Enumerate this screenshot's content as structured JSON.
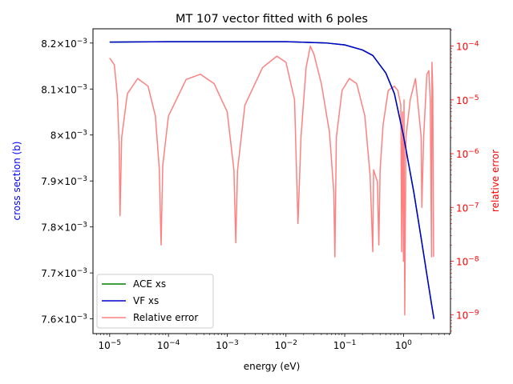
{
  "chart_data": {
    "type": "line",
    "title": "MT 107 vector fitted with 6 poles",
    "xlabel": "energy (eV)",
    "ylabel_left": "cross section (b)",
    "ylabel_right": "relative error",
    "xscale": "log",
    "xlim": [
      5.2e-06,
      6.3
    ],
    "ylim_left": [
      0.007568,
      0.008231
    ],
    "yscale_right": "log",
    "ylim_right": [
      4.5e-10,
      0.00021
    ],
    "x_ticks": [
      {
        "value": 1e-05,
        "label": "10",
        "exp": "−5"
      },
      {
        "value": 0.0001,
        "label": "10",
        "exp": "−4"
      },
      {
        "value": 0.001,
        "label": "10",
        "exp": "−3"
      },
      {
        "value": 0.01,
        "label": "10",
        "exp": "−2"
      },
      {
        "value": 0.1,
        "label": "10",
        "exp": "−1"
      },
      {
        "value": 1,
        "label": "10",
        "exp": "0"
      }
    ],
    "y_left_ticks": [
      {
        "value": 0.0076,
        "label": "7.6×10",
        "exp": "−3"
      },
      {
        "value": 0.0077,
        "label": "7.7×10",
        "exp": "−3"
      },
      {
        "value": 0.0078,
        "label": "7.8×10",
        "exp": "−3"
      },
      {
        "value": 0.0079,
        "label": "7.9×10",
        "exp": "−3"
      },
      {
        "value": 0.008,
        "label": "8×10",
        "exp": "−3"
      },
      {
        "value": 0.0081,
        "label": "8.1×10",
        "exp": "−3"
      },
      {
        "value": 0.0082,
        "label": "8.2×10",
        "exp": "−3"
      }
    ],
    "y_right_ticks": [
      {
        "value": 0.0001,
        "label": "10",
        "exp": "−4"
      },
      {
        "value": 1e-05,
        "label": "10",
        "exp": "−5"
      },
      {
        "value": 1e-06,
        "label": "10",
        "exp": "−6"
      },
      {
        "value": 1e-07,
        "label": "10",
        "exp": "−7"
      },
      {
        "value": 1e-08,
        "label": "10",
        "exp": "−8"
      },
      {
        "value": 1e-09,
        "label": "10",
        "exp": "−9"
      }
    ],
    "legend_position": "lower-left",
    "series": [
      {
        "name": "ACE xs",
        "color": "#008000",
        "axis": "left",
        "x": [
          1e-05,
          0.0001,
          0.001,
          0.01,
          0.05,
          0.1,
          0.2,
          0.3,
          0.5,
          0.7,
          1.0,
          1.5,
          2.0,
          2.5,
          3.0,
          3.3
        ],
        "y": [
          0.008202,
          0.008203,
          0.008203,
          0.008203,
          0.0082,
          0.008196,
          0.008185,
          0.008173,
          0.008135,
          0.00809,
          0.007998,
          0.007875,
          0.007775,
          0.007696,
          0.007632,
          0.0076
        ]
      },
      {
        "name": "VF xs",
        "color": "#0000cd",
        "axis": "left",
        "x": [
          1e-05,
          0.0001,
          0.001,
          0.01,
          0.05,
          0.1,
          0.2,
          0.3,
          0.5,
          0.7,
          1.0,
          1.5,
          2.0,
          2.5,
          3.0,
          3.3
        ],
        "y": [
          0.008202,
          0.008203,
          0.008203,
          0.008203,
          0.0082,
          0.008196,
          0.008185,
          0.008173,
          0.008135,
          0.00809,
          0.007998,
          0.007875,
          0.007775,
          0.007696,
          0.007632,
          0.0076
        ]
      },
      {
        "name": "Relative error",
        "color": "#ff8080",
        "axis": "right",
        "x": [
          1e-05,
          1.2e-05,
          1.35e-05,
          1.45e-05,
          1.5e-05,
          1.6e-05,
          2e-05,
          3e-05,
          4.5e-05,
          6e-05,
          7e-05,
          7.5e-05,
          8e-05,
          0.0001,
          0.0002,
          0.00035,
          0.0006,
          0.001,
          0.0013,
          0.0014,
          0.0015,
          0.002,
          0.004,
          0.007,
          0.01,
          0.014,
          0.016,
          0.018,
          0.022,
          0.026,
          0.03,
          0.04,
          0.055,
          0.065,
          0.068,
          0.072,
          0.09,
          0.12,
          0.16,
          0.22,
          0.27,
          0.3,
          0.31,
          0.33,
          0.36,
          0.38,
          0.4,
          0.45,
          0.55,
          0.7,
          0.8,
          0.9,
          0.93,
          0.96,
          1.0,
          1.02,
          1.05,
          1.1,
          1.3,
          1.6,
          2.0,
          2.05,
          2.2,
          2.5,
          2.7,
          2.85,
          3.0,
          3.05,
          3.15,
          3.25
        ],
        "y": [
          6e-05,
          4.5e-05,
          1.2e-05,
          1.5e-06,
          7e-08,
          2e-06,
          1.3e-05,
          2.5e-05,
          1.8e-05,
          5e-06,
          5e-07,
          2e-08,
          6e-07,
          5e-06,
          2.4e-05,
          3e-05,
          2e-05,
          6e-06,
          5e-07,
          2.2e-08,
          5e-07,
          8e-06,
          4e-05,
          6.5e-05,
          5e-05,
          1e-05,
          5e-08,
          2e-06,
          4e-05,
          0.0001,
          7e-05,
          2e-05,
          2.5e-06,
          2e-07,
          1.2e-08,
          2e-06,
          1.5e-05,
          2.5e-05,
          2e-05,
          5e-06,
          4e-07,
          1.5e-08,
          5e-07,
          4e-07,
          3e-07,
          2e-08,
          5e-07,
          3.5e-06,
          1.5e-05,
          1.8e-05,
          1.5e-05,
          8e-06,
          1.5e-08,
          6e-06,
          1e-08,
          1e-05,
          1e-09,
          2e-06,
          1e-05,
          2.5e-05,
          2e-06,
          1e-07,
          2e-06,
          3e-05,
          3.5e-05,
          1e-05,
          1.2e-08,
          5e-05,
          1.5e-05,
          1.2e-08
        ]
      }
    ]
  }
}
